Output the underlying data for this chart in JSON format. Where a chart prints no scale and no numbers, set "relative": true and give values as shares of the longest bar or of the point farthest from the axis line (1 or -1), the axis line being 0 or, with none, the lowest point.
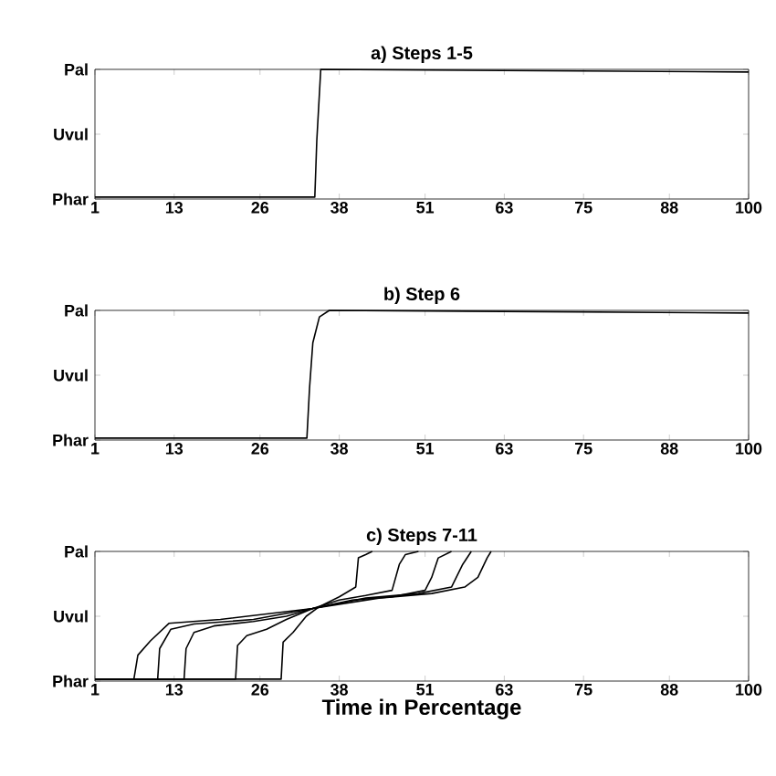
{
  "chart_data": [
    {
      "type": "line",
      "title": "a) Steps 1-5",
      "xlim": [
        1,
        100
      ],
      "xticks": [
        1,
        13,
        26,
        38,
        51,
        63,
        75,
        88,
        100
      ],
      "relative": true,
      "y_categories": [
        "Pal",
        "Uvul",
        "Phar"
      ],
      "series": [
        {
          "color": "#000000",
          "x": [
            1,
            34.3,
            34.6,
            35.2,
            100
          ],
          "values": [
            0.015,
            0.015,
            0.45,
            1.0,
            0.98
          ]
        }
      ]
    },
    {
      "type": "line",
      "title": "b) Step 6",
      "xlim": [
        1,
        100
      ],
      "xticks": [
        1,
        13,
        26,
        38,
        51,
        63,
        75,
        88,
        100
      ],
      "relative": true,
      "y_categories": [
        "Pal",
        "Uvul",
        "Phar"
      ],
      "series": [
        {
          "color": "#000000",
          "x": [
            1,
            33.1,
            33.5,
            34,
            34.5,
            35,
            36.5,
            100
          ],
          "values": [
            0.015,
            0.015,
            0.4,
            0.75,
            0.85,
            0.95,
            1.0,
            0.98
          ]
        }
      ]
    },
    {
      "type": "line",
      "title": "c) Steps 7-11",
      "xlabel": "Time in Percentage",
      "xlim": [
        1,
        100
      ],
      "xticks": [
        1,
        13,
        26,
        38,
        51,
        63,
        75,
        88,
        100
      ],
      "relative": true,
      "y_categories": [
        "Pal",
        "Uvul",
        "Phar"
      ],
      "series": [
        {
          "color": "#000000",
          "x": [
            1,
            6.9,
            7.5,
            9.4,
            12.2,
            20,
            34,
            44,
            52,
            57,
            59,
            60.4,
            61
          ],
          "values": [
            0.015,
            0.015,
            0.2,
            0.31,
            0.445,
            0.475,
            0.56,
            0.64,
            0.675,
            0.725,
            0.8,
            0.95,
            1.0
          ]
        },
        {
          "color": "#000000",
          "x": [
            1,
            10.5,
            10.8,
            12.5,
            16,
            25,
            34,
            42,
            50,
            55,
            56.7,
            58
          ],
          "values": [
            0.015,
            0.015,
            0.25,
            0.4,
            0.44,
            0.475,
            0.56,
            0.64,
            0.675,
            0.725,
            0.9,
            1.0
          ]
        },
        {
          "color": "#000000",
          "x": [
            1,
            14.5,
            14.8,
            16,
            19,
            25,
            30,
            34,
            40,
            46,
            51,
            52,
            53,
            55
          ],
          "values": [
            0.015,
            0.015,
            0.25,
            0.375,
            0.425,
            0.46,
            0.5,
            0.56,
            0.625,
            0.65,
            0.7,
            0.8,
            0.95,
            1.0
          ]
        },
        {
          "color": "#000000",
          "x": [
            1,
            22.3,
            22.6,
            24,
            27,
            30,
            34,
            38,
            42,
            46,
            47.1,
            48,
            50
          ],
          "values": [
            0.015,
            0.015,
            0.275,
            0.35,
            0.4,
            0.475,
            0.56,
            0.625,
            0.66,
            0.7,
            0.9,
            0.975,
            1.0
          ]
        },
        {
          "color": "#000000",
          "x": [
            1,
            29.2,
            29.5,
            31,
            33,
            35,
            38,
            40.5,
            40.9,
            42,
            43
          ],
          "values": [
            0.015,
            0.015,
            0.3,
            0.375,
            0.5,
            0.575,
            0.65,
            0.725,
            0.95,
            0.975,
            1.0
          ]
        }
      ]
    }
  ]
}
